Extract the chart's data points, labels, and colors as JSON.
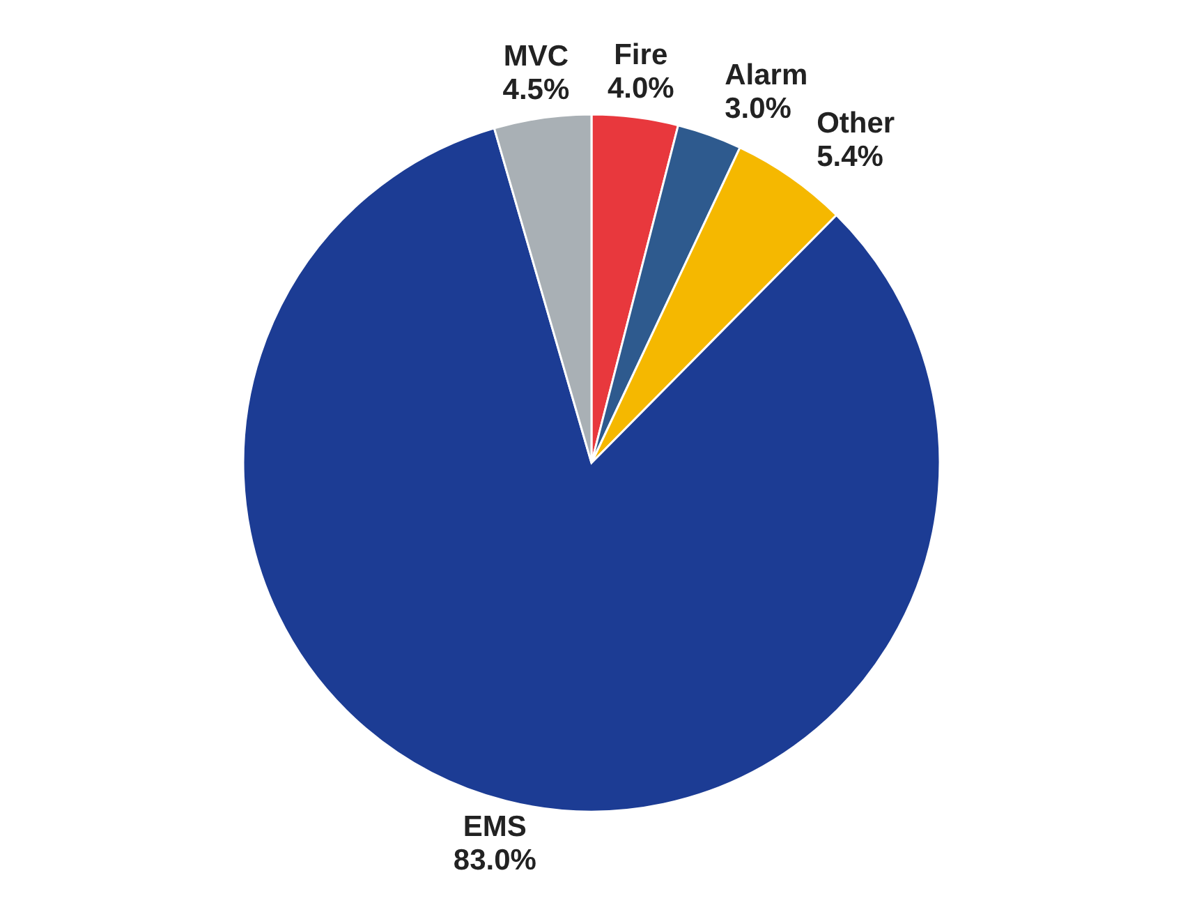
{
  "chart_data": {
    "type": "pie",
    "categories": [
      "Fire",
      "Alarm",
      "Other",
      "EMS",
      "MVC"
    ],
    "values": [
      4.0,
      3.0,
      5.4,
      83.0,
      4.5
    ],
    "colors": [
      "#e8383d",
      "#2e5a8e",
      "#f5b800",
      "#1c3c94",
      "#a9b0b5"
    ],
    "value_labels": [
      "4.0%",
      "3.0%",
      "5.4%",
      "83.0%",
      "4.5%"
    ],
    "legend": false
  }
}
